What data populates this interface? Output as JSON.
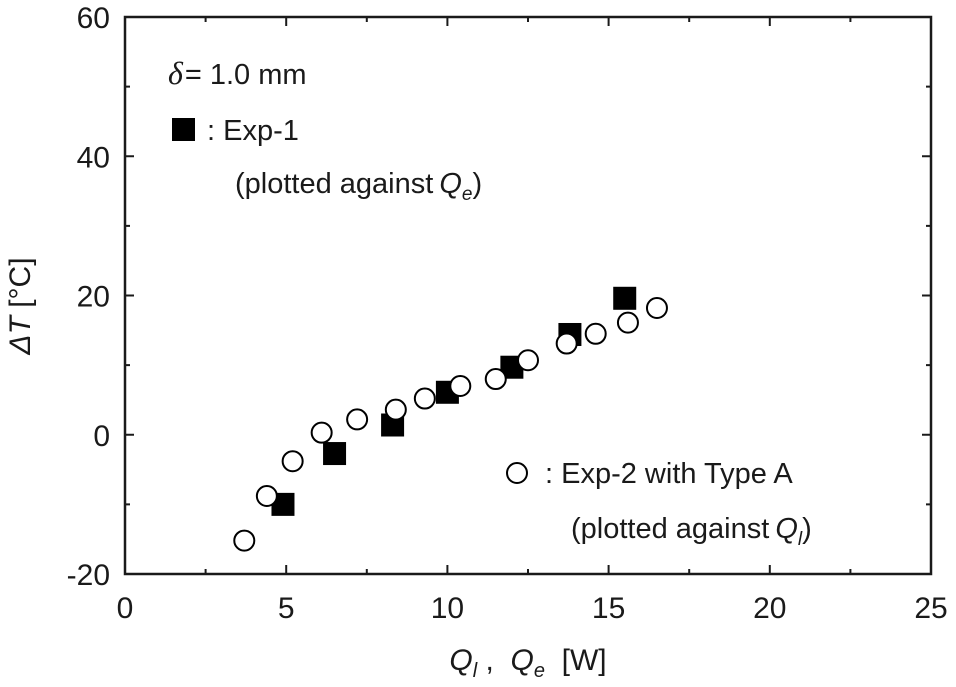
{
  "chart_data": {
    "type": "scatter",
    "title": "",
    "xlabel": {
      "q_l": "Q",
      "q_l_sub": "l",
      "sep": " ,  ",
      "q_e": "Q",
      "q_e_sub": "e",
      "unit": "  [W]"
    },
    "ylabel": {
      "delta_t": "ΔT",
      "unit": " [°C]"
    },
    "xlim": [
      0,
      25
    ],
    "ylim": [
      -20,
      60
    ],
    "x_ticks": [
      0,
      5,
      10,
      15,
      20,
      25
    ],
    "y_ticks": [
      -20,
      0,
      20,
      40,
      60
    ],
    "x_tick_labels": [
      "0",
      "5",
      "10",
      "15",
      "20",
      "25"
    ],
    "y_tick_labels": [
      "-20",
      "0",
      "20",
      "40",
      "60"
    ],
    "grid": false,
    "series": [
      {
        "name": "Exp-1",
        "marker": "filled-square",
        "color": "#000000",
        "x": [
          4.9,
          6.5,
          8.3,
          10.0,
          12.0,
          13.8,
          15.5
        ],
        "y": [
          -10.0,
          -2.7,
          1.4,
          6.1,
          9.7,
          14.4,
          19.6
        ]
      },
      {
        "name": "Exp-2 with Type A",
        "marker": "open-circle",
        "color": "#000000",
        "x": [
          3.7,
          4.4,
          5.2,
          6.1,
          7.2,
          8.4,
          9.3,
          10.4,
          11.5,
          12.5,
          13.7,
          14.6,
          15.6,
          16.5
        ],
        "y": [
          -15.2,
          -8.8,
          -3.8,
          0.3,
          2.2,
          3.6,
          5.2,
          7.0,
          8.0,
          10.7,
          13.1,
          14.5,
          16.1,
          18.2
        ]
      }
    ],
    "annotations": {
      "delta_label": "δ",
      "delta_value": "= 1.0 mm",
      "exp1_label": ": Exp-1",
      "exp1_note": "(plotted against",
      "exp1_note_var": "Q",
      "exp1_note_sub": "e",
      "exp1_note_end": ")",
      "exp2_label": ": Exp-2 with Type A",
      "exp2_note": "(plotted against",
      "exp2_note_var": "Q",
      "exp2_note_sub": "l",
      "exp2_note_end": ")"
    }
  }
}
